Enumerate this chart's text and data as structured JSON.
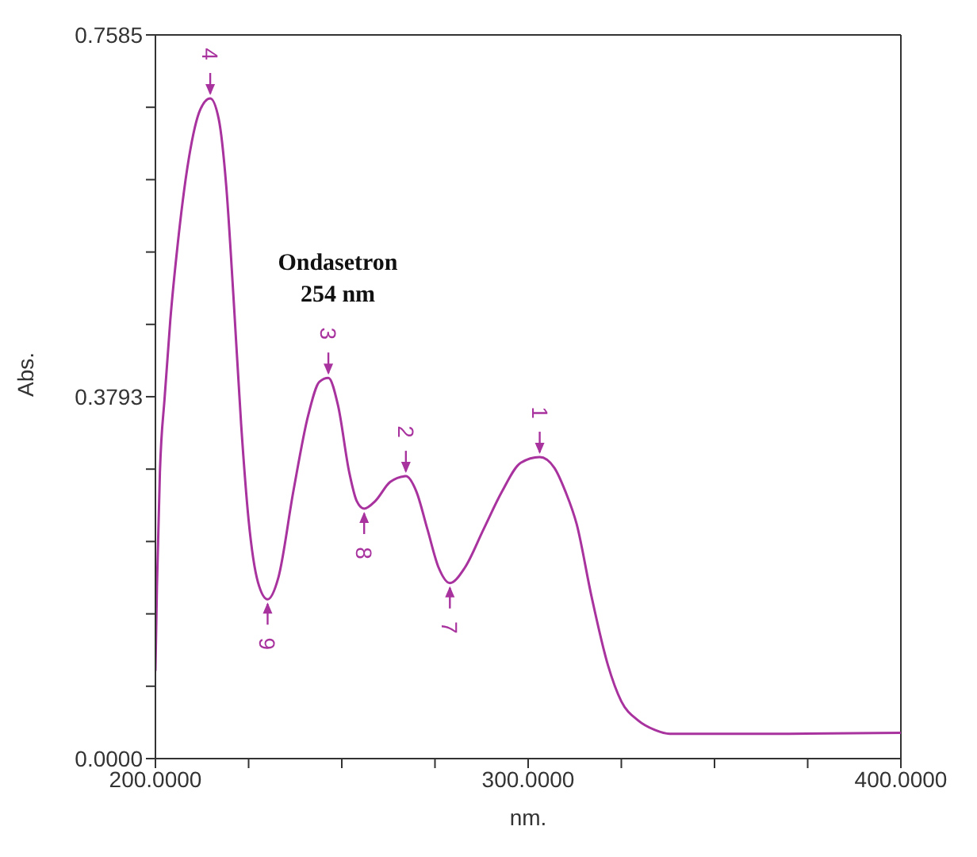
{
  "chart_data": {
    "type": "line",
    "title": "Ondasetron\n254 nm",
    "xlabel": "nm.",
    "ylabel": "Abs.",
    "xlim": [
      200,
      400
    ],
    "ylim": [
      0,
      0.7585
    ],
    "xticks": [
      {
        "value": 200,
        "label": "200.0000"
      },
      {
        "value": 225,
        "label": null
      },
      {
        "value": 250,
        "label": null
      },
      {
        "value": 275,
        "label": null
      },
      {
        "value": 300,
        "label": "300.0000"
      },
      {
        "value": 325,
        "label": null
      },
      {
        "value": 350,
        "label": null
      },
      {
        "value": 375,
        "label": null
      },
      {
        "value": 400,
        "label": "400.0000"
      }
    ],
    "yticks": [
      {
        "value": 0,
        "label": "0.0000"
      },
      {
        "value": 0.07585,
        "label": null
      },
      {
        "value": 0.1517,
        "label": null
      },
      {
        "value": 0.22755,
        "label": null
      },
      {
        "value": 0.3034,
        "label": null
      },
      {
        "value": 0.3793,
        "label": "0.3793"
      },
      {
        "value": 0.4551,
        "label": null
      },
      {
        "value": 0.53095,
        "label": null
      },
      {
        "value": 0.6068,
        "label": null
      },
      {
        "value": 0.68265,
        "label": null
      },
      {
        "value": 0.7585,
        "label": "0.7585"
      }
    ],
    "marker": "none",
    "line_style": "solid",
    "series": [
      {
        "color": "#a8329e",
        "x": [
          200,
          200.4,
          201.2,
          202.5,
          204,
          206,
          209,
          212,
          214.7,
          217,
          219,
          221,
          223,
          225,
          227.5,
          230.1,
          233,
          237,
          241,
          244,
          246.4,
          249,
          252,
          254,
          256,
          259,
          263,
          267.2,
          270,
          273,
          276,
          279,
          283,
          288,
          293,
          298,
          303.1,
          307,
          310,
          313,
          317,
          321.4,
          325,
          329.5,
          334,
          338,
          350,
          370,
          400
        ],
        "values": [
          0.092,
          0.18,
          0.3,
          0.38,
          0.46,
          0.54,
          0.63,
          0.68,
          0.692,
          0.67,
          0.6,
          0.48,
          0.35,
          0.25,
          0.185,
          0.167,
          0.19,
          0.28,
          0.36,
          0.395,
          0.399,
          0.37,
          0.3,
          0.27,
          0.262,
          0.27,
          0.29,
          0.296,
          0.28,
          0.24,
          0.2,
          0.184,
          0.2,
          0.24,
          0.28,
          0.31,
          0.316,
          0.305,
          0.28,
          0.246,
          0.17,
          0.098,
          0.06,
          0.04,
          0.03,
          0.026,
          0.026,
          0.026,
          0.027
        ]
      }
    ],
    "annotations": [
      {
        "text": "4",
        "x": 214.7,
        "y": 0.692
      },
      {
        "text": "9",
        "x": 230.1,
        "y": 0.167
      },
      {
        "text": "3",
        "x": 246.4,
        "y": 0.399
      },
      {
        "text": "8",
        "x": 256,
        "y": 0.262
      },
      {
        "text": "2",
        "x": 267.2,
        "y": 0.296
      },
      {
        "text": "7",
        "x": 279,
        "y": 0.184
      },
      {
        "text": "1",
        "x": 303.1,
        "y": 0.316
      }
    ]
  }
}
